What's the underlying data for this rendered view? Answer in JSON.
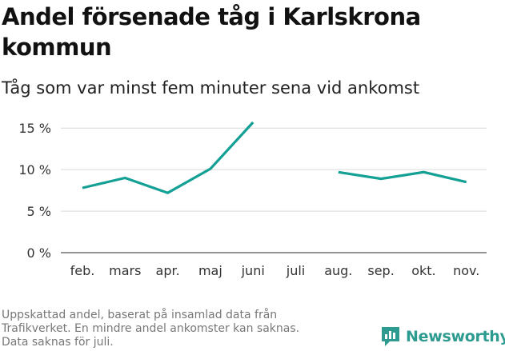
{
  "title": "Andel försenade tåg i Karlskrona kommun",
  "subtitle": "Tåg som var minst fem minuter sena vid ankomst",
  "footer": {
    "line1": "Uppskattad andel, baserat på insamlad data från",
    "line2": "Trafikverket. En mindre andel ankomster kan saknas.",
    "line3": "Data saknas för juli."
  },
  "logo": {
    "text": "Newsworthy",
    "icon": "newsworthy-chart-bubble-icon",
    "color": "#2d9b8f"
  },
  "colors": {
    "line": "#14a094",
    "grid": "#d9d9d9",
    "axis": "#333333"
  },
  "chart_data": {
    "type": "line",
    "categories": [
      "feb.",
      "mars",
      "apr.",
      "maj",
      "juni",
      "juli",
      "aug.",
      "sep.",
      "okt.",
      "nov."
    ],
    "series": [
      {
        "values": [
          7.8,
          9.0,
          7.2,
          10.1,
          15.7,
          null,
          9.7,
          8.9,
          9.7,
          8.5
        ]
      }
    ],
    "yticks": [
      0,
      5,
      10,
      15
    ],
    "ytick_labels": [
      "0 %",
      "5 %",
      "10 %",
      "15 %"
    ],
    "ylim": [
      0,
      15.6
    ],
    "grid": true,
    "legend": "none"
  }
}
